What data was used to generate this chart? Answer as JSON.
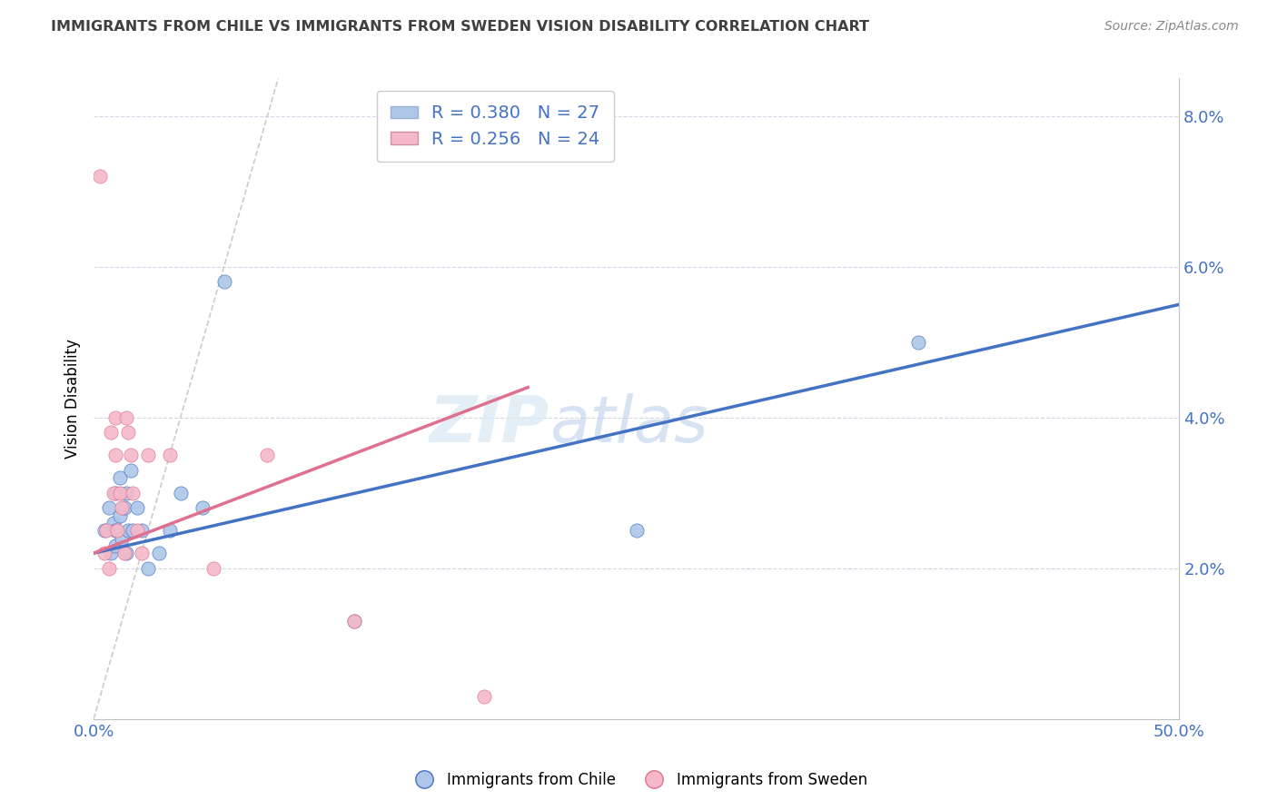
{
  "title": "IMMIGRANTS FROM CHILE VS IMMIGRANTS FROM SWEDEN VISION DISABILITY CORRELATION CHART",
  "source": "Source: ZipAtlas.com",
  "ylabel": "Vision Disability",
  "xlim": [
    0.0,
    0.5
  ],
  "ylim": [
    0.0,
    0.085
  ],
  "yticks": [
    0.02,
    0.04,
    0.06,
    0.08
  ],
  "ytick_labels": [
    "2.0%",
    "4.0%",
    "6.0%",
    "8.0%"
  ],
  "xticks": [
    0.0,
    0.05,
    0.1,
    0.15,
    0.2,
    0.25,
    0.3,
    0.35,
    0.4,
    0.45,
    0.5
  ],
  "chile_R": 0.38,
  "chile_N": 27,
  "sweden_R": 0.256,
  "sweden_N": 24,
  "chile_color": "#adc6e8",
  "sweden_color": "#f5b8c8",
  "chile_line_color": "#4472c4",
  "sweden_line_color": "#e07090",
  "diagonal_color": "#cccccc",
  "chile_line_x0": 0.0,
  "chile_line_y0": 0.022,
  "chile_line_x1": 0.5,
  "chile_line_y1": 0.055,
  "sweden_line_x0": 0.0,
  "sweden_line_y0": 0.022,
  "sweden_line_x1": 0.2,
  "sweden_line_y1": 0.044,
  "chile_scatter_x": [
    0.005,
    0.007,
    0.008,
    0.009,
    0.01,
    0.01,
    0.01,
    0.012,
    0.012,
    0.013,
    0.014,
    0.015,
    0.015,
    0.016,
    0.017,
    0.018,
    0.02,
    0.022,
    0.025,
    0.03,
    0.035,
    0.04,
    0.05,
    0.06,
    0.12,
    0.25,
    0.38
  ],
  "chile_scatter_y": [
    0.025,
    0.028,
    0.022,
    0.026,
    0.03,
    0.025,
    0.023,
    0.032,
    0.027,
    0.024,
    0.028,
    0.03,
    0.022,
    0.025,
    0.033,
    0.025,
    0.028,
    0.025,
    0.02,
    0.022,
    0.025,
    0.03,
    0.028,
    0.058,
    0.013,
    0.025,
    0.05
  ],
  "sweden_scatter_x": [
    0.003,
    0.005,
    0.006,
    0.007,
    0.008,
    0.009,
    0.01,
    0.01,
    0.011,
    0.012,
    0.013,
    0.014,
    0.015,
    0.016,
    0.017,
    0.018,
    0.02,
    0.022,
    0.025,
    0.035,
    0.055,
    0.08,
    0.12,
    0.18
  ],
  "sweden_scatter_y": [
    0.072,
    0.022,
    0.025,
    0.02,
    0.038,
    0.03,
    0.04,
    0.035,
    0.025,
    0.03,
    0.028,
    0.022,
    0.04,
    0.038,
    0.035,
    0.03,
    0.025,
    0.022,
    0.035,
    0.035,
    0.02,
    0.035,
    0.013,
    0.003
  ]
}
